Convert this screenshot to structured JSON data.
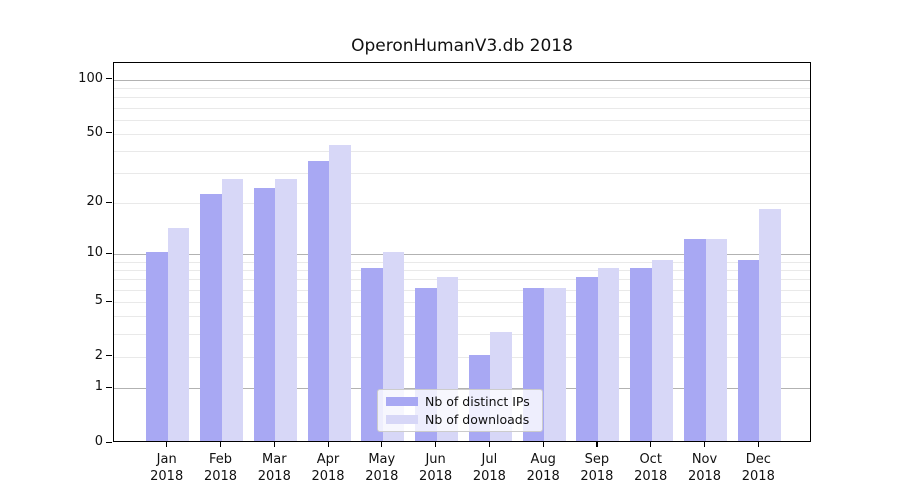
{
  "figure": {
    "title": "OperonHumanV3.db 2018"
  },
  "chart_data": {
    "type": "bar",
    "title": "OperonHumanV3.db 2018",
    "xlabel": "",
    "ylabel": "",
    "x_categories": [
      "Jan",
      "Feb",
      "Mar",
      "Apr",
      "May",
      "Jun",
      "Jul",
      "Aug",
      "Sep",
      "Oct",
      "Nov",
      "Dec"
    ],
    "x_year_line": "2018",
    "series": [
      {
        "name": "Nb of distinct IPs",
        "color": "#a8a8f3",
        "values": [
          10,
          22,
          24,
          34,
          8,
          6,
          2,
          6,
          7,
          8,
          12,
          9
        ]
      },
      {
        "name": "Nb of downloads",
        "color": "#d7d7f7",
        "values": [
          14,
          27,
          27,
          42,
          10,
          7,
          3,
          6,
          8,
          9,
          12,
          18
        ]
      }
    ],
    "yscale": "log1p",
    "ylim": [
      0,
      124
    ],
    "y_tick_labels": [
      100,
      50,
      20,
      10,
      5,
      2,
      1,
      0
    ],
    "y_major_gridlines": [
      1,
      10,
      100
    ],
    "y_minor_gridlines": [
      2,
      3,
      4,
      5,
      6,
      7,
      8,
      9,
      20,
      30,
      40,
      50,
      60,
      70,
      80,
      90
    ],
    "grid": true,
    "legend_position": "lower-center"
  },
  "colors": {
    "background": "#ffffff",
    "axis": "#000000",
    "text": "#111111",
    "grid_major": "#b2b2b2",
    "grid_minor": "#e9e9e9",
    "legend_border": "#cccccc"
  }
}
